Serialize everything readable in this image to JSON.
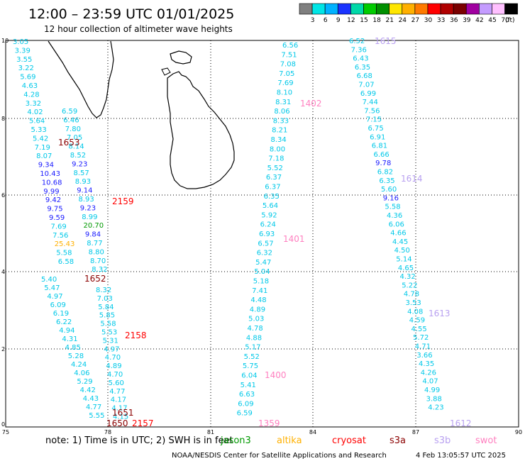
{
  "title": "12:00 – 23:59 UTC 01/01/2025",
  "subtitle": "12 hour collection of altimeter wave heights",
  "legend": {
    "unit": "(ft)",
    "bins": [
      {
        "label": "",
        "color": "#7f7f7f"
      },
      {
        "label": "3",
        "color": "#00e5e5"
      },
      {
        "label": "6",
        "color": "#00b2ff"
      },
      {
        "label": "9",
        "color": "#1a33ff"
      },
      {
        "label": "12",
        "color": "#00d8a8"
      },
      {
        "label": "15",
        "color": "#00cc00"
      },
      {
        "label": "18",
        "color": "#008f00"
      },
      {
        "label": "21",
        "color": "#ffe600"
      },
      {
        "label": "24",
        "color": "#ffb000"
      },
      {
        "label": "27",
        "color": "#ff7a00"
      },
      {
        "label": "30",
        "color": "#ff0000"
      },
      {
        "label": "33",
        "color": "#b00000"
      },
      {
        "label": "36",
        "color": "#7a0000"
      },
      {
        "label": "39",
        "color": "#a000a0"
      },
      {
        "label": "42",
        "color": "#c49cff"
      },
      {
        "label": "45",
        "color": "#ffc0ff"
      },
      {
        "label": "70",
        "color": "#000000"
      }
    ]
  },
  "axes": {
    "x_ticks": [
      "75",
      "78",
      "81",
      "84",
      "87",
      "90"
    ],
    "y_ticks": [
      "0",
      "2",
      "4",
      "6",
      "8",
      "10"
    ]
  },
  "value_colors": {
    "cyan": "#00c8e8",
    "blue": "#1a1aff",
    "green": "#009900",
    "orange": "#ffb000"
  },
  "tracks": [
    {
      "id": "track-1653",
      "values": [
        [
          "3.05",
          "cyan"
        ],
        [
          "3.39",
          "cyan"
        ],
        [
          "3.55",
          "cyan"
        ],
        [
          "3.22",
          "cyan"
        ],
        [
          "5.69",
          "cyan"
        ],
        [
          "4.63",
          "cyan"
        ],
        [
          "4.28",
          "cyan"
        ],
        [
          "3.32",
          "cyan"
        ],
        [
          "4.02",
          "cyan"
        ],
        [
          "5.64",
          "cyan"
        ],
        [
          "5.33",
          "cyan"
        ],
        [
          "5.42",
          "cyan"
        ],
        [
          "7.19",
          "cyan"
        ],
        [
          "8.07",
          "cyan"
        ],
        [
          "9.34",
          "blue"
        ],
        [
          "10.43",
          "blue"
        ],
        [
          "10.68",
          "blue"
        ],
        [
          "9.99",
          "blue"
        ],
        [
          "9.42",
          "blue"
        ],
        [
          "9.75",
          "blue"
        ],
        [
          "9.59",
          "blue"
        ],
        [
          "7.69",
          "cyan"
        ],
        [
          "7.56",
          "cyan"
        ],
        [
          "25.43",
          "orange"
        ],
        [
          "5.58",
          "cyan"
        ],
        [
          "6.58",
          "cyan"
        ]
      ]
    },
    {
      "id": "track-1652",
      "values": [
        [
          "5.40",
          "cyan"
        ],
        [
          "5.47",
          "cyan"
        ],
        [
          "4.97",
          "cyan"
        ],
        [
          "6.09",
          "cyan"
        ],
        [
          "6.19",
          "cyan"
        ],
        [
          "6.22",
          "cyan"
        ],
        [
          "4.94",
          "cyan"
        ],
        [
          "4.31",
          "cyan"
        ],
        [
          "4.85",
          "cyan"
        ],
        [
          "5.28",
          "cyan"
        ],
        [
          "4.24",
          "cyan"
        ],
        [
          "4.06",
          "cyan"
        ],
        [
          "5.29",
          "cyan"
        ],
        [
          "4.42",
          "cyan"
        ],
        [
          "4.43",
          "cyan"
        ],
        [
          "4.77",
          "cyan"
        ],
        [
          "5.55",
          "cyan"
        ]
      ]
    },
    {
      "id": "track-2159",
      "values": [
        [
          "6.59",
          "cyan"
        ],
        [
          "6.46",
          "cyan"
        ],
        [
          "7.80",
          "cyan"
        ],
        [
          "7.05",
          "cyan"
        ],
        [
          "8.14",
          "cyan"
        ],
        [
          "8.52",
          "cyan"
        ],
        [
          "9.23",
          "blue"
        ],
        [
          "8.57",
          "cyan"
        ],
        [
          "8.93",
          "cyan"
        ],
        [
          "9.14",
          "blue"
        ],
        [
          "8.93",
          "cyan"
        ],
        [
          "9.23",
          "blue"
        ],
        [
          "8.99",
          "cyan"
        ],
        [
          "20.70",
          "green"
        ],
        [
          "9.84",
          "blue"
        ],
        [
          "8.77",
          "cyan"
        ],
        [
          "8.80",
          "cyan"
        ],
        [
          "8.70",
          "cyan"
        ],
        [
          "8.32",
          "cyan"
        ]
      ]
    },
    {
      "id": "track-2158",
      "values": [
        [
          "8.32",
          "cyan"
        ],
        [
          "7.03",
          "cyan"
        ],
        [
          "5.84",
          "cyan"
        ],
        [
          "5.85",
          "cyan"
        ],
        [
          "5.58",
          "cyan"
        ],
        [
          "5.53",
          "cyan"
        ],
        [
          "5.31",
          "cyan"
        ],
        [
          "4.97",
          "cyan"
        ],
        [
          "4.70",
          "cyan"
        ],
        [
          "4.89",
          "cyan"
        ],
        [
          "4.70",
          "cyan"
        ],
        [
          "5.60",
          "cyan"
        ],
        [
          "4.77",
          "cyan"
        ],
        [
          "4.17",
          "cyan"
        ],
        [
          "4.17",
          "cyan"
        ],
        [
          "4.15",
          "cyan"
        ]
      ]
    },
    {
      "id": "track-1402-1359",
      "values": [
        [
          "6.56",
          "cyan"
        ],
        [
          "7.51",
          "cyan"
        ],
        [
          "7.08",
          "cyan"
        ],
        [
          "7.05",
          "cyan"
        ],
        [
          "7.69",
          "cyan"
        ],
        [
          "8.10",
          "cyan"
        ],
        [
          "8.31",
          "cyan"
        ],
        [
          "8.06",
          "cyan"
        ],
        [
          "8.33",
          "cyan"
        ],
        [
          "8.21",
          "cyan"
        ],
        [
          "8.34",
          "cyan"
        ],
        [
          "8.00",
          "cyan"
        ],
        [
          "7.18",
          "cyan"
        ],
        [
          "5.52",
          "cyan"
        ],
        [
          "6.37",
          "cyan"
        ],
        [
          "6.37",
          "cyan"
        ],
        [
          "6.35",
          "cyan"
        ],
        [
          "5.64",
          "cyan"
        ],
        [
          "5.92",
          "cyan"
        ],
        [
          "6.24",
          "cyan"
        ],
        [
          "6.93",
          "cyan"
        ],
        [
          "6.57",
          "cyan"
        ],
        [
          "6.32",
          "cyan"
        ],
        [
          "5.47",
          "cyan"
        ],
        [
          "5.04",
          "cyan"
        ],
        [
          "5.18",
          "cyan"
        ],
        [
          "7.41",
          "cyan"
        ],
        [
          "4.48",
          "cyan"
        ],
        [
          "4.89",
          "cyan"
        ],
        [
          "5.03",
          "cyan"
        ],
        [
          "4.78",
          "cyan"
        ],
        [
          "4.88",
          "cyan"
        ],
        [
          "5.17",
          "cyan"
        ],
        [
          "5.52",
          "cyan"
        ],
        [
          "5.75",
          "cyan"
        ],
        [
          "6.04",
          "cyan"
        ],
        [
          "5.41",
          "cyan"
        ],
        [
          "6.63",
          "cyan"
        ],
        [
          "6.09",
          "cyan"
        ],
        [
          "6.59",
          "cyan"
        ]
      ]
    },
    {
      "id": "track-1615-1612",
      "values": [
        [
          "6.52",
          "cyan"
        ],
        [
          "7.36",
          "cyan"
        ],
        [
          "6.43",
          "cyan"
        ],
        [
          "6.35",
          "cyan"
        ],
        [
          "6.68",
          "cyan"
        ],
        [
          "7.07",
          "cyan"
        ],
        [
          "6.99",
          "cyan"
        ],
        [
          "7.44",
          "cyan"
        ],
        [
          "7.56",
          "cyan"
        ],
        [
          "7.15",
          "cyan"
        ],
        [
          "6.75",
          "cyan"
        ],
        [
          "6.91",
          "cyan"
        ],
        [
          "6.81",
          "cyan"
        ],
        [
          "6.66",
          "cyan"
        ],
        [
          "9.78",
          "blue"
        ],
        [
          "6.82",
          "cyan"
        ],
        [
          "6.35",
          "cyan"
        ],
        [
          "5.60",
          "cyan"
        ],
        [
          "9.16",
          "blue"
        ],
        [
          "5.58",
          "cyan"
        ],
        [
          "4.36",
          "cyan"
        ],
        [
          "6.06",
          "cyan"
        ],
        [
          "4.66",
          "cyan"
        ],
        [
          "4.45",
          "cyan"
        ],
        [
          "4.50",
          "cyan"
        ],
        [
          "5.14",
          "cyan"
        ],
        [
          "4.65",
          "cyan"
        ],
        [
          "4.32",
          "cyan"
        ],
        [
          "5.22",
          "cyan"
        ],
        [
          "4.78",
          "cyan"
        ],
        [
          "3.53",
          "cyan"
        ],
        [
          "4.08",
          "cyan"
        ],
        [
          "4.59",
          "cyan"
        ],
        [
          "4.55",
          "cyan"
        ],
        [
          "5.72",
          "cyan"
        ],
        [
          "4.71",
          "cyan"
        ],
        [
          "3.66",
          "cyan"
        ],
        [
          "4.35",
          "cyan"
        ],
        [
          "4.26",
          "cyan"
        ],
        [
          "4.07",
          "cyan"
        ],
        [
          "4.99",
          "cyan"
        ],
        [
          "3.88",
          "cyan"
        ],
        [
          "4.23",
          "cyan"
        ]
      ]
    }
  ],
  "pass_labels": [
    {
      "text": "1653",
      "color": "#8b0000"
    },
    {
      "text": "1652",
      "color": "#8b0000"
    },
    {
      "text": "1651",
      "color": "#8b0000"
    },
    {
      "text": "1650",
      "color": "#8b0000"
    },
    {
      "text": "2159",
      "color": "#ff0000"
    },
    {
      "text": "2158",
      "color": "#ff0000"
    },
    {
      "text": "2157",
      "color": "#ff0000"
    },
    {
      "text": "1402",
      "color": "#ff80c0"
    },
    {
      "text": "1401",
      "color": "#ff80c0"
    },
    {
      "text": "1400",
      "color": "#ff80c0"
    },
    {
      "text": "1359",
      "color": "#ff80c0"
    },
    {
      "text": "1615",
      "color": "#b8a0f0"
    },
    {
      "text": "1614",
      "color": "#b8a0f0"
    },
    {
      "text": "1613",
      "color": "#b8a0f0"
    },
    {
      "text": "1612",
      "color": "#b8a0f0"
    }
  ],
  "footer": {
    "note": "note:  1) Time is in UTC;  2) SWH is in feet",
    "satellites": [
      {
        "name": "jason3",
        "color": "#009900"
      },
      {
        "name": "altika",
        "color": "#ffb000"
      },
      {
        "name": "cryosat",
        "color": "#ff0000"
      },
      {
        "name": "s3a",
        "color": "#8b0000"
      },
      {
        "name": "s3b",
        "color": "#b8a0f0"
      },
      {
        "name": "swot",
        "color": "#ff80c0"
      }
    ],
    "credit": "NOAA/NESDIS Center for Satellite Applications and Research",
    "timestamp": "4 Feb 13:05:57 UTC 2025"
  }
}
